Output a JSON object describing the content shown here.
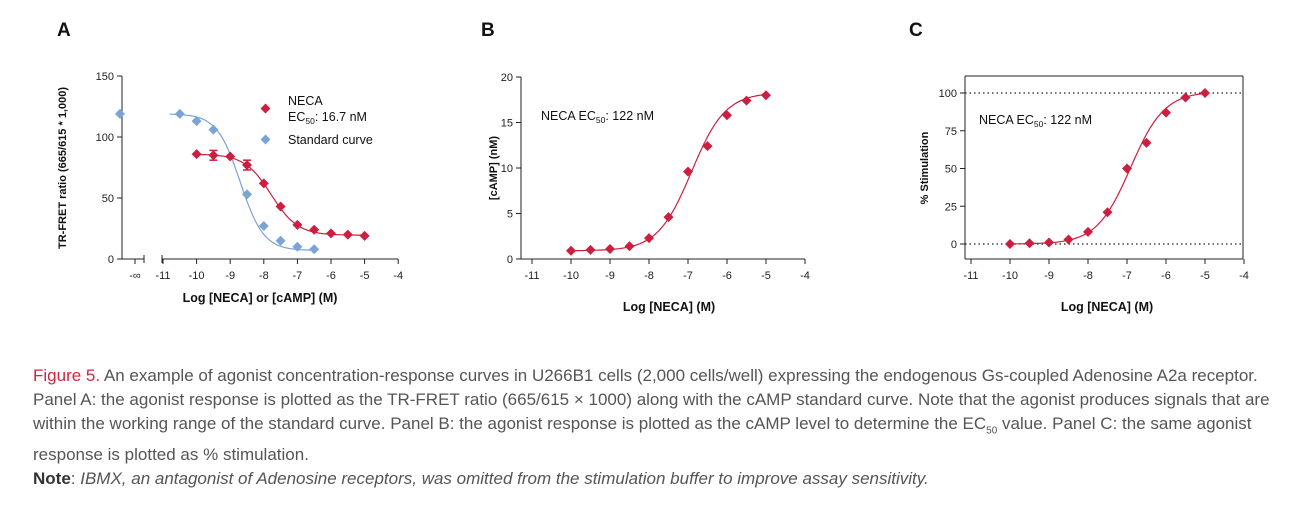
{
  "chart_data": [
    {
      "panel": "A",
      "type": "scatter",
      "xlabel": "Log [NECA] or [cAMP] (M)",
      "ylabel": "TR-FRET ratio (665/615 * 1,000)",
      "xlim": [
        -11.9,
        -4
      ],
      "ylim": [
        0,
        150
      ],
      "x_ticks": [
        "-∞",
        "-11",
        "-10",
        "-9",
        "-8",
        "-7",
        "-6",
        "-5",
        "-4"
      ],
      "y_ticks": [
        "0",
        "50",
        "100",
        "150"
      ],
      "axis_break": true,
      "legend_position": "top-right",
      "colors": {
        "NECA": "#cc1f40",
        "Standard curve": "#7ba3d4"
      },
      "series": [
        {
          "name": "NECA",
          "annotation": "EC50: 16.7 nM",
          "marker": "diamond",
          "x": [
            -10,
            -9.5,
            -9,
            -8.5,
            -8,
            -7.5,
            -7,
            -6.5,
            -6,
            -5.5,
            -5
          ],
          "y": [
            86,
            85,
            84,
            77,
            62,
            43,
            28,
            24,
            21,
            20,
            19
          ],
          "error": [
            0,
            4,
            0,
            4,
            0,
            0,
            0,
            0,
            0,
            0,
            0
          ],
          "fit_params": {
            "top": 86,
            "bottom": 19.5,
            "logEC50": -7.78,
            "hill": 1.1
          }
        },
        {
          "name": "Standard curve",
          "marker": "diamond",
          "x": [
            -11.6,
            -10.5,
            -10,
            -9.5,
            -8.5,
            -8,
            -7.5,
            -7,
            -6.5
          ],
          "y": [
            119,
            119,
            113,
            106,
            53,
            27,
            15,
            10,
            8
          ],
          "fit_params": {
            "top": 119,
            "bottom": 7,
            "logEC50": -8.7,
            "hill": 1.25,
            "xmin": -10.8
          }
        }
      ]
    },
    {
      "panel": "B",
      "type": "scatter",
      "xlabel": "Log [NECA] (M)",
      "ylabel": "[cAMP] (nM)",
      "xlim": [
        -11,
        -4
      ],
      "ylim": [
        0,
        20
      ],
      "x_ticks": [
        "-11",
        "-10",
        "-9",
        "-8",
        "-7",
        "-6",
        "-5",
        "-4"
      ],
      "y_ticks": [
        "0",
        "5",
        "10",
        "15",
        "20"
      ],
      "annotation": "NECA EC50: 122 nM",
      "series": [
        {
          "name": "NECA",
          "marker": "diamond",
          "x": [
            -10,
            -9.5,
            -9,
            -8.5,
            -8,
            -7.5,
            -7,
            -6.5,
            -6,
            -5.5,
            -5
          ],
          "y": [
            0.9,
            1.0,
            1.1,
            1.4,
            2.3,
            4.6,
            9.6,
            12.4,
            15.8,
            17.4,
            18.0
          ],
          "fit_params": {
            "top": 18.3,
            "bottom": 0.9,
            "logEC50": -6.91,
            "hill": 1.0
          }
        }
      ]
    },
    {
      "panel": "C",
      "type": "scatter",
      "xlabel": "Log [NECA] (M)",
      "ylabel": "% Stimulation",
      "xlim": [
        -11,
        -4
      ],
      "ylim": [
        -10,
        110
      ],
      "x_ticks": [
        "-11",
        "-10",
        "-9",
        "-8",
        "-7",
        "-6",
        "-5",
        "-4"
      ],
      "y_ticks": [
        "0",
        "25",
        "50",
        "75",
        "100"
      ],
      "reference_lines": [
        0,
        100
      ],
      "annotation": "NECA EC50: 122 nM",
      "series": [
        {
          "name": "NECA",
          "marker": "diamond",
          "x": [
            -10,
            -9.5,
            -9,
            -8.5,
            -8,
            -7.5,
            -7,
            -6.5,
            -6,
            -5.5,
            -5
          ],
          "y": [
            0,
            0.5,
            1,
            3,
            8,
            21,
            50,
            67,
            87,
            97,
            100
          ],
          "fit_params": {
            "top": 101,
            "bottom": 0,
            "logEC50": -6.91,
            "hill": 1.0
          }
        }
      ]
    }
  ],
  "panels": {
    "A": {
      "label": "A",
      "legend_neca": "NECA",
      "legend_ec50_pre": "EC",
      "legend_ec50_sub": "50",
      "legend_ec50_post": ": 16.7 nM",
      "legend_std": "Standard curve"
    },
    "B": {
      "label": "B",
      "anno_pre": "NECA EC",
      "anno_sub": "50",
      "anno_post": ": 122 nM"
    },
    "C": {
      "label": "C",
      "anno_pre": "NECA EC",
      "anno_sub": "50",
      "anno_post": ": 122 nM"
    }
  },
  "caption": {
    "title": "Figure 5.",
    "text_1": " An example of agonist concentration-response curves in U266B1 cells (2,000 cells/well) expressing the endogenous Gs-coupled Adenosine A2a receptor. Panel A:  the agonist response is plotted as the TR-FRET ratio (665/615 × 1000) along with the cAMP standard curve. Note that the agonist produces signals that are within the working range of the standard curve. Panel B: the agonist response is plotted as the cAMP level to determine the EC",
    "text_sub": "50",
    "text_2": " value. Panel C: the same agonist response is plotted as % stimulation.",
    "note_label": "Note",
    "note_sep": ": ",
    "note_text": "IBMX, an antagonist of Adenosine receptors, was omitted from the stimulation buffer to improve assay sensitivity."
  }
}
